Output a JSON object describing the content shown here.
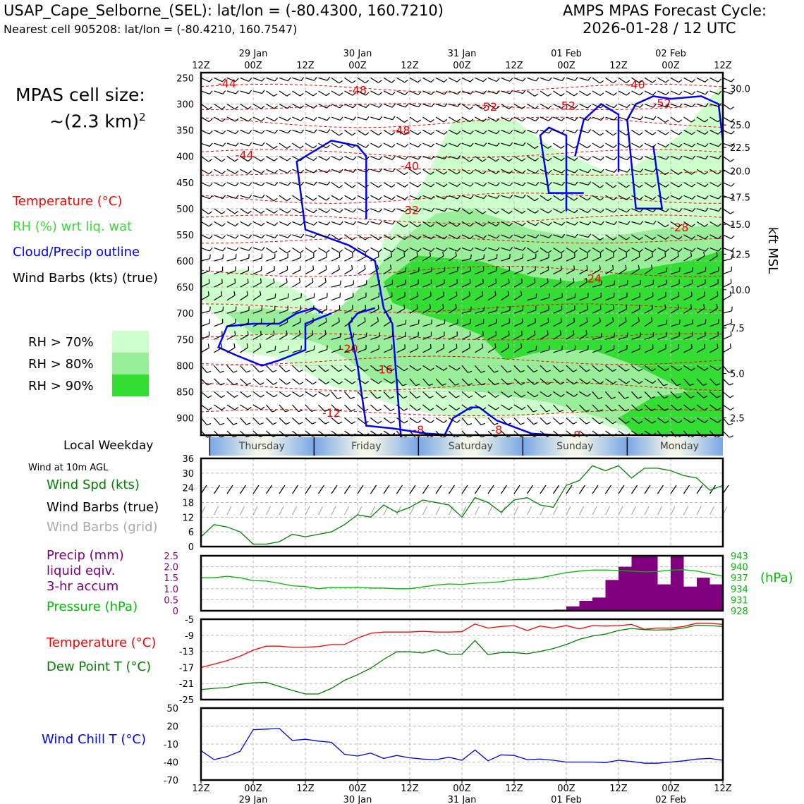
{
  "header": {
    "station": "USAP_Cape_Selborne_(SEL): lat/lon = (-80.4300, 160.7210)",
    "nearest": "Nearest cell 905208: lat/lon = (-80.4210, 160.7547)",
    "cycle_label": "AMPS MPAS Forecast Cycle:",
    "cycle_time": "2026-01-28 / 12 UTC",
    "cell_size_label": "MPAS cell size:",
    "cell_size_value": "~(2.3 km)",
    "cell_size_exp": "2"
  },
  "legend": {
    "temperature": "Temperature (°C)",
    "rh": "RH (%) wrt liq. wat",
    "cloud": "Cloud/Precip outline",
    "wind": "Wind Barbs (kts) (true)",
    "rh70": "RH > 70%",
    "rh80": "RH > 80%",
    "rh90": "RH > 90%"
  },
  "colors": {
    "temperature": "#ff0000",
    "rh_legend": "#33dd33",
    "cloud": "#0000ff",
    "rh70": "#ccffcc",
    "rh80": "#99ee99",
    "rh90": "#33dd33",
    "wind_spd": "#008000",
    "grid_barb": "#aaaaaa",
    "precip": "#800080",
    "pressure": "#00bb00",
    "dewpoint": "#008000",
    "windchill": "#0000ff"
  },
  "panels": {
    "weekday_label": "Local Weekday",
    "wind10m_label": "Wind at 10m AGL",
    "wind_spd_label": "Wind Spd (kts)",
    "wind_barbs_true_label": "Wind Barbs (true)",
    "wind_barbs_grid_label": "Wind Barbs (grid)",
    "precip_label1": "Precip (mm)",
    "precip_label2": "liquid eqiv.",
    "precip_label3": "3-hr accum",
    "pressure_label": "Pressure (hPa)",
    "hpa_label": "(hPa)",
    "temp_label": "Temperature (°C)",
    "dew_label": "Dew Point T (°C)",
    "windchill_label": "Wind Chill T (°C)",
    "kft_label": "kft MSL"
  },
  "chart_data": [
    {
      "type": "time-height cross section",
      "x_ticks": [
        "12Z",
        "00Z",
        "12Z",
        "00Z",
        "12Z",
        "00Z",
        "12Z",
        "00Z",
        "12Z",
        "00Z",
        "12Z"
      ],
      "date_labels": [
        "29 Jan",
        "30 Jan",
        "31 Jan",
        "01 Feb",
        "02 Feb"
      ],
      "y_pressure_ticks": [
        250,
        300,
        350,
        400,
        450,
        500,
        550,
        600,
        650,
        700,
        750,
        800,
        850,
        900
      ],
      "y_kft_ticks": [
        "30.0",
        "25.0",
        "22.5",
        "20.0",
        "17.5",
        "15.0",
        "12.5",
        "10.0",
        "7.5",
        "5.0",
        "2.5"
      ],
      "y_kft_pressures": [
        270,
        340,
        383,
        428,
        478,
        530,
        587,
        655,
        728,
        815,
        900
      ],
      "weekdays": [
        "Thursday",
        "Friday",
        "Saturday",
        "Sunday",
        "Monday"
      ],
      "temperature_contour_labels": [
        {
          "label": "-44",
          "t": 3,
          "p": 260
        },
        {
          "label": "-48",
          "t": 18,
          "p": 273
        },
        {
          "label": "-40",
          "t": 50,
          "p": 262
        },
        {
          "label": "-52",
          "t": 33,
          "p": 305
        },
        {
          "label": "-52",
          "t": 42,
          "p": 303
        },
        {
          "label": "-52",
          "t": 53,
          "p": 298
        },
        {
          "label": "-48",
          "t": 23,
          "p": 350
        },
        {
          "label": "-44",
          "t": 5,
          "p": 397
        },
        {
          "label": "-40",
          "t": 24,
          "p": 418
        },
        {
          "label": "-32",
          "t": 24,
          "p": 502
        },
        {
          "label": "-28",
          "t": 55,
          "p": 535
        },
        {
          "label": "-24",
          "t": 45,
          "p": 633
        },
        {
          "label": "-20",
          "t": 17,
          "p": 767
        },
        {
          "label": "-16",
          "t": 21,
          "p": 807
        },
        {
          "label": "-12",
          "t": 15,
          "p": 890
        },
        {
          "label": "-8",
          "t": 25,
          "p": 922
        },
        {
          "label": "-8",
          "t": 34,
          "p": 922
        },
        {
          "label": "-8",
          "t": 43,
          "p": 932
        }
      ]
    },
    {
      "type": "line",
      "name": "wind_speed_10m",
      "ylim": [
        0,
        36
      ],
      "yticks": [
        0,
        6,
        12,
        18,
        24,
        30,
        36
      ],
      "x_hours": [
        0,
        3,
        6,
        9,
        12,
        15,
        18,
        21,
        24,
        27,
        30,
        33,
        36,
        39,
        42,
        45,
        48,
        51,
        54,
        57,
        60,
        63,
        66,
        69,
        72,
        75,
        78,
        81,
        84,
        87,
        90,
        93,
        96,
        99,
        102,
        105,
        108,
        111,
        114,
        117,
        120
      ],
      "values": [
        4,
        9,
        8,
        6,
        1,
        1,
        2,
        5,
        4,
        5,
        6,
        9,
        13,
        12,
        17,
        14,
        16,
        19,
        18,
        17,
        12,
        20,
        18,
        14,
        19,
        20,
        17,
        16,
        25,
        27,
        33,
        31,
        33,
        28,
        32,
        32,
        31,
        29,
        28,
        23,
        25
      ]
    },
    {
      "type": "bar+line",
      "name": "precip_and_pressure",
      "precip_ylim": [
        0,
        2.5
      ],
      "precip_yticks": [
        "0",
        "0.5",
        "1.0",
        "1.5",
        "2.0",
        "2.5"
      ],
      "pressure_ylim": [
        928,
        943
      ],
      "pressure_yticks": [
        "928",
        "931",
        "934",
        "937",
        "940",
        "943"
      ],
      "precip_x": [
        84,
        87,
        90,
        93,
        96,
        99,
        102,
        105,
        108,
        111,
        114,
        117,
        120
      ],
      "precip_values": [
        0.05,
        0.2,
        0.45,
        0.6,
        1.4,
        2.0,
        2.5,
        2.5,
        1.2,
        2.5,
        1.1,
        1.5,
        1.2
      ],
      "pressure_x": [
        0,
        3,
        6,
        9,
        12,
        15,
        18,
        21,
        24,
        27,
        30,
        33,
        36,
        39,
        42,
        45,
        48,
        51,
        54,
        57,
        60,
        63,
        66,
        69,
        72,
        75,
        78,
        81,
        84,
        87,
        90,
        93,
        96,
        99,
        102,
        105,
        108,
        111,
        114,
        117,
        120
      ],
      "pressure_values": [
        937,
        937,
        937.4,
        937,
        936.2,
        936.1,
        935.5,
        934.8,
        934.6,
        934,
        934.4,
        934.3,
        934.4,
        934.2,
        934.2,
        934,
        934,
        934.5,
        935,
        935.3,
        935.2,
        935.5,
        935.7,
        935.9,
        936.5,
        936.6,
        937,
        937.7,
        938.4,
        938.8,
        939.1,
        939.1,
        939,
        938.8,
        938.6,
        938.7,
        939.1,
        939.2,
        938.8,
        938.1,
        937.4
      ]
    },
    {
      "type": "line",
      "name": "temperature_dewpoint",
      "ylim": [
        -25,
        -5
      ],
      "yticks": [
        -25,
        -21,
        -17,
        -13,
        -9,
        -5
      ],
      "x_hours": [
        0,
        3,
        6,
        9,
        12,
        15,
        18,
        21,
        24,
        27,
        30,
        33,
        36,
        39,
        42,
        45,
        48,
        51,
        54,
        57,
        60,
        63,
        66,
        69,
        72,
        75,
        78,
        81,
        84,
        87,
        90,
        93,
        96,
        99,
        102,
        105,
        108,
        111,
        114,
        117,
        120
      ],
      "temperature": [
        -17,
        -16.2,
        -15.3,
        -14.2,
        -12.7,
        -11.7,
        -11.7,
        -12,
        -12,
        -11.8,
        -11.3,
        -11.3,
        -9.7,
        -8.5,
        -8.2,
        -8.2,
        -8.2,
        -8,
        -8.2,
        -8.2,
        -8.1,
        -6.2,
        -7.2,
        -6.8,
        -6.6,
        -7.8,
        -6.7,
        -7.2,
        -6.6,
        -7.4,
        -6.6,
        -6.7,
        -6.6,
        -6.3,
        -7.5,
        -7.2,
        -7.2,
        -6.8,
        -6,
        -6,
        -6.3
      ],
      "dewpoint": [
        -22.5,
        -22.2,
        -22,
        -21.2,
        -20.8,
        -20.7,
        -21.7,
        -22.7,
        -23.6,
        -23.6,
        -22.2,
        -20.2,
        -18.8,
        -17.2,
        -15,
        -13.1,
        -13.1,
        -13.4,
        -12.6,
        -13.7,
        -13.7,
        -10.3,
        -13.8,
        -13.3,
        -13.3,
        -13.6,
        -13,
        -12.3,
        -11.3,
        -10,
        -9.2,
        -8.7,
        -7.8,
        -7.3,
        -7.6,
        -7.7,
        -7.6,
        -7.2,
        -6.5,
        -6.6,
        -6.8
      ]
    },
    {
      "type": "line",
      "name": "wind_chill",
      "ylim": [
        -70,
        50
      ],
      "yticks": [
        -70,
        -40,
        -10,
        20,
        50
      ],
      "x_hours": [
        0,
        3,
        6,
        9,
        12,
        15,
        18,
        21,
        24,
        27,
        30,
        33,
        36,
        39,
        42,
        45,
        48,
        51,
        54,
        57,
        60,
        63,
        66,
        69,
        72,
        75,
        78,
        81,
        84,
        87,
        90,
        93,
        96,
        99,
        102,
        105,
        108,
        111,
        114,
        117,
        120
      ],
      "values": [
        -21,
        -36,
        -31,
        -22,
        14,
        15,
        16,
        -4,
        -2,
        -5,
        -7,
        -27,
        -30,
        -25,
        -34,
        -29,
        -33,
        -35,
        -36,
        -32,
        -37,
        -20,
        -38,
        -28,
        -29,
        -36,
        -35,
        -37,
        -40,
        -40,
        -40,
        -41,
        -37,
        -39,
        -42,
        -42,
        -40,
        -38,
        -35,
        -34,
        -37
      ]
    }
  ]
}
